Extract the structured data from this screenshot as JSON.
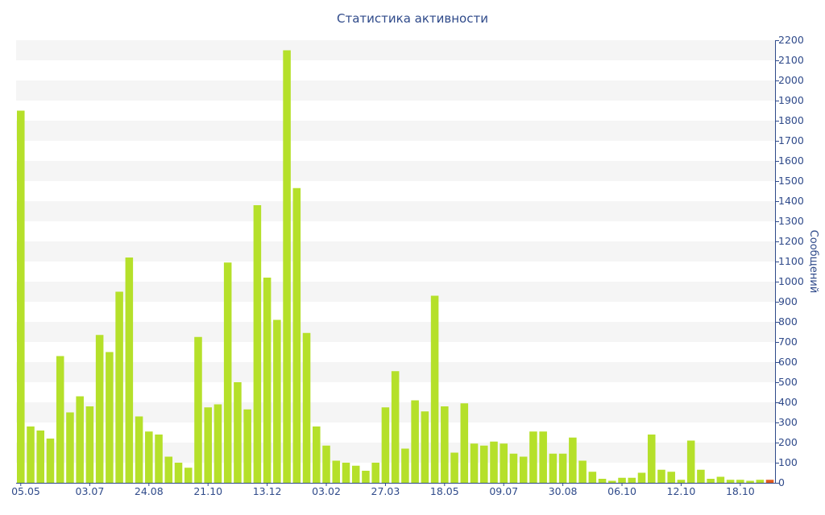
{
  "chart_data": {
    "type": "bar",
    "title": "Статистика активности",
    "xlabel": "",
    "ylabel": "Сообщений",
    "ylim": [
      0,
      2200
    ],
    "y_ticks": [
      0,
      100,
      200,
      300,
      400,
      500,
      600,
      700,
      800,
      900,
      1000,
      1100,
      1200,
      1300,
      1400,
      1500,
      1600,
      1700,
      1800,
      1900,
      2000,
      2100,
      2200
    ],
    "x_tick_labels": [
      {
        "index": 0,
        "label": "05.05"
      },
      {
        "index": 7,
        "label": "03.07"
      },
      {
        "index": 13,
        "label": "24.08"
      },
      {
        "index": 19,
        "label": "21.10"
      },
      {
        "index": 25,
        "label": "13.12"
      },
      {
        "index": 31,
        "label": "03.02"
      },
      {
        "index": 37,
        "label": "27.03"
      },
      {
        "index": 43,
        "label": "18.05"
      },
      {
        "index": 49,
        "label": "09.07"
      },
      {
        "index": 55,
        "label": "30.08"
      },
      {
        "index": 61,
        "label": "06.10"
      },
      {
        "index": 67,
        "label": "12.10"
      },
      {
        "index": 73,
        "label": "18.10"
      }
    ],
    "values": [
      1850,
      280,
      260,
      220,
      630,
      350,
      430,
      380,
      735,
      650,
      950,
      1120,
      330,
      255,
      240,
      130,
      100,
      75,
      725,
      375,
      390,
      1095,
      500,
      365,
      1380,
      1020,
      810,
      2150,
      1465,
      745,
      280,
      185,
      110,
      100,
      85,
      60,
      100,
      375,
      555,
      170,
      410,
      355,
      930,
      380,
      150,
      395,
      195,
      185,
      205,
      195,
      145,
      130,
      255,
      255,
      145,
      145,
      225,
      110,
      55,
      20,
      10,
      25,
      25,
      50,
      240,
      65,
      55,
      15,
      210,
      65,
      20,
      30,
      15,
      15,
      10,
      15,
      15
    ],
    "colors": {
      "bar": "#b5e02a",
      "last_bar": "#e05a1e",
      "stripe": "#f5f5f5",
      "axis": "#2f4a8a"
    }
  }
}
